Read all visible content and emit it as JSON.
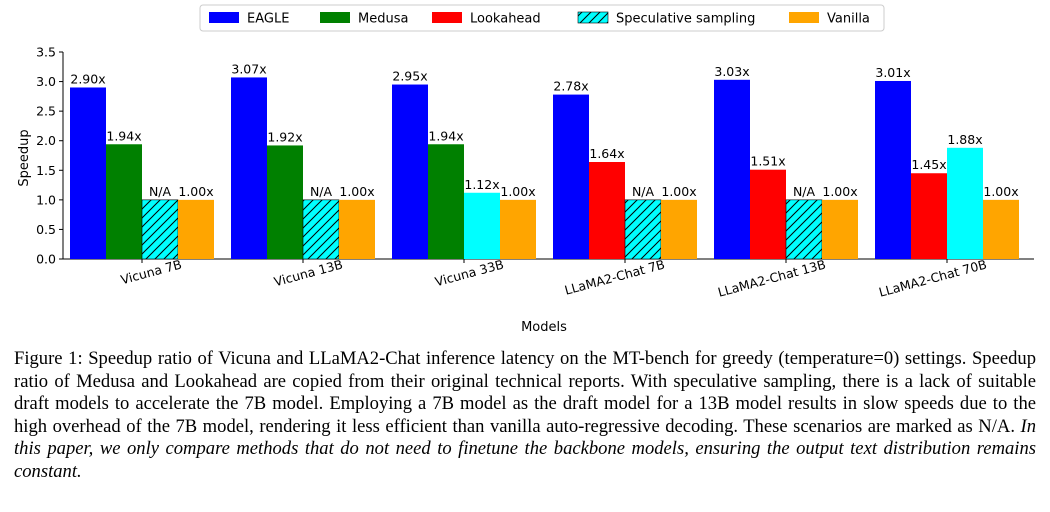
{
  "chart_data": {
    "type": "bar",
    "title": "",
    "xlabel": "Models",
    "ylabel": "Speedup",
    "ylim": [
      0,
      3.5
    ],
    "yticks": [
      "0.0",
      "0.5",
      "1.0",
      "1.5",
      "2.0",
      "2.5",
      "3.0",
      "3.5"
    ],
    "categories": [
      "Vicuna 7B",
      "Vicuna 13B",
      "Vicuna 33B",
      "LLaMA2-Chat 7B",
      "LLaMA2-Chat 13B",
      "LLaMA2-Chat 70B"
    ],
    "legend_position": "top-center",
    "series": [
      {
        "name": "EAGLE",
        "color": "#0000ff",
        "hatch": false,
        "values": [
          2.9,
          3.07,
          2.95,
          2.78,
          3.03,
          3.01
        ],
        "labels": [
          "2.90x",
          "3.07x",
          "2.95x",
          "2.78x",
          "3.03x",
          "3.01x"
        ]
      },
      {
        "name": "Medusa",
        "color": "#008000",
        "hatch": false,
        "values": [
          1.94,
          1.92,
          1.94,
          null,
          null,
          null
        ],
        "labels": [
          "1.94x",
          "1.92x",
          "1.94x",
          null,
          null,
          null
        ]
      },
      {
        "name": "Lookahead",
        "color": "#ff0000",
        "hatch": false,
        "values": [
          null,
          null,
          null,
          1.64,
          1.51,
          1.45
        ],
        "labels": [
          null,
          null,
          null,
          "1.64x",
          "1.51x",
          "1.45x"
        ]
      },
      {
        "name": "Speculative sampling",
        "color": "#00ffff",
        "hatch": true,
        "values": [
          1.0,
          1.0,
          1.12,
          1.0,
          1.0,
          1.88
        ],
        "na": [
          true,
          true,
          false,
          true,
          true,
          false
        ],
        "labels": [
          "N/A",
          "N/A",
          "1.12x",
          "N/A",
          "N/A",
          "1.88x"
        ]
      },
      {
        "name": "Vanilla",
        "color": "#ffa500",
        "hatch": false,
        "values": [
          1.0,
          1.0,
          1.0,
          1.0,
          1.0,
          1.0
        ],
        "labels": [
          "1.00x",
          "1.00x",
          "1.00x",
          "1.00x",
          "1.00x",
          "1.00x"
        ]
      }
    ]
  },
  "caption": {
    "prefix": "Figure 1: Speedup ratio of Vicuna and LLaMA2-Chat inference latency on the MT-bench for greedy (temperature=0) settings. Speedup ratio of Medusa and Lookahead are copied from their original technical reports. With speculative sampling, there is a lack of suitable draft models to accelerate the 7B model. Employing a 7B model as the draft model for a 13B model results in slow speeds due to the high overhead of the 7B model, rendering it less efficient than vanilla auto-regressive decoding. These scenarios are marked as N/A. ",
    "italic": "In this paper, we only compare methods that do not need to finetune the backbone models, ensuring the output text distribution remains constant."
  }
}
